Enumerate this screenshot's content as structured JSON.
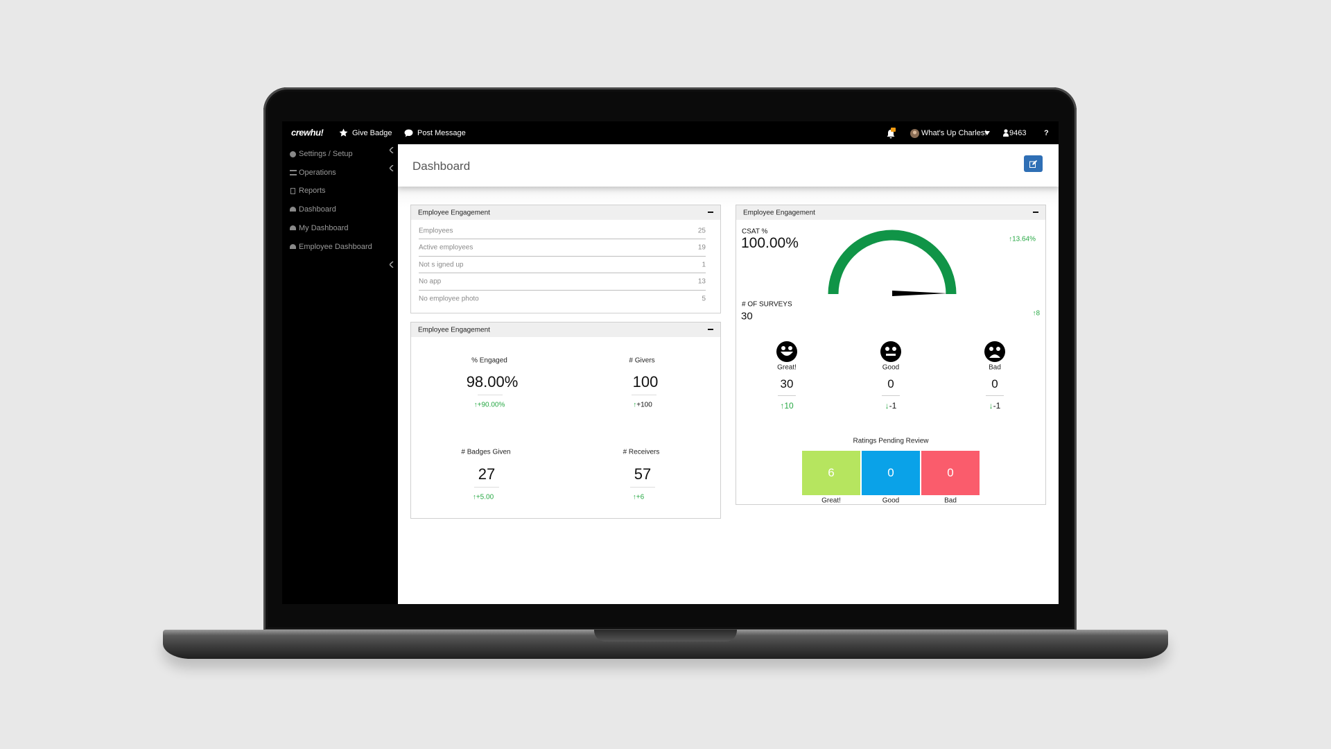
{
  "nav": {
    "brand": "crewhu!",
    "links": [
      "Give Badge",
      "Post Message"
    ],
    "user": "What's Up Charles!",
    "points": "9463",
    "help": "?"
  },
  "sidebar": [
    "Settings / Setup",
    "Operations",
    "Reports",
    "Dashboard",
    "My Dashboard",
    "Employee Dashboard"
  ],
  "header": {
    "title": "Dashboard"
  },
  "panel_counts": {
    "title": "Employee Engagement",
    "rows": [
      [
        "Employees",
        "25"
      ],
      [
        "Active employees",
        "19"
      ],
      [
        "Not s igned up",
        "1"
      ],
      [
        "No app",
        "13"
      ],
      [
        "No employee photo",
        "5"
      ]
    ]
  },
  "panel_stats": {
    "title": "Employee Engagement",
    "stats": [
      {
        "label": "% Engaged",
        "value": "98.00%",
        "change": "+90.00%"
      },
      {
        "label": "# Givers",
        "value": "100",
        "change": "+100"
      },
      {
        "label": "# Badges Given",
        "value": "27",
        "change": "+5.00"
      },
      {
        "label": "# Receivers",
        "value": "57",
        "change": "+6"
      }
    ]
  },
  "panel_csat": {
    "title": "Employee Engagement",
    "csat": {
      "label": "CSAT %",
      "value": "100.00%",
      "change": "13.64%"
    },
    "surveys": {
      "label": "# OF SURVEYS",
      "value": "30",
      "change": "8"
    },
    "ratings": [
      {
        "label": "Great!",
        "count": "30",
        "change": "10"
      },
      {
        "label": "Good",
        "count": "0",
        "change": "-1"
      },
      {
        "label": "Bad",
        "count": "0",
        "change": "-1"
      }
    ],
    "pending": {
      "title": "Ratings Pending Review",
      "bars": [
        {
          "label": "Great!",
          "value": "6",
          "color": "#b6e55f"
        },
        {
          "label": "Good",
          "value": "0",
          "color": "#0aa2e8"
        },
        {
          "label": "Bad",
          "value": "0",
          "color": "#fa5c6c"
        }
      ]
    }
  }
}
